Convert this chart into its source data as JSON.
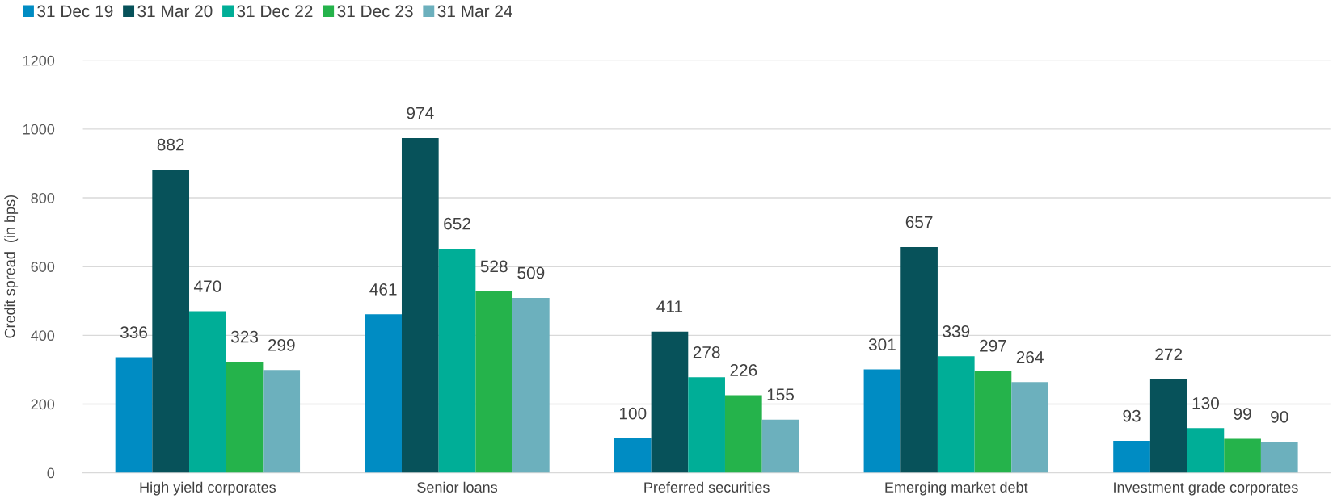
{
  "chart_data": {
    "type": "bar",
    "ylabel": "Credit spread  (in bps)",
    "categories": [
      "High yield corporates",
      "Senior loans",
      "Preferred securities",
      "Emerging market debt",
      "Investment grade corporates"
    ],
    "series": [
      {
        "name": "31 Dec 19",
        "color": "#008cc3",
        "values": [
          336,
          461,
          100,
          301,
          93
        ]
      },
      {
        "name": "31 Mar 20",
        "color": "#07525a",
        "values": [
          882,
          974,
          411,
          657,
          272
        ]
      },
      {
        "name": "31 Dec 22",
        "color": "#00ae97",
        "values": [
          470,
          652,
          278,
          339,
          130
        ]
      },
      {
        "name": "31 Dec 23",
        "color": "#25b34b",
        "values": [
          323,
          528,
          226,
          297,
          99
        ]
      },
      {
        "name": "31 Mar 24",
        "color": "#6cb0bd",
        "values": [
          299,
          509,
          155,
          264,
          90
        ]
      }
    ],
    "ylim": [
      0,
      1200
    ],
    "yticks": [
      0,
      200,
      400,
      600,
      800,
      1000,
      1200
    ],
    "grid": "y",
    "legend": "top left",
    "data_labels": true
  }
}
